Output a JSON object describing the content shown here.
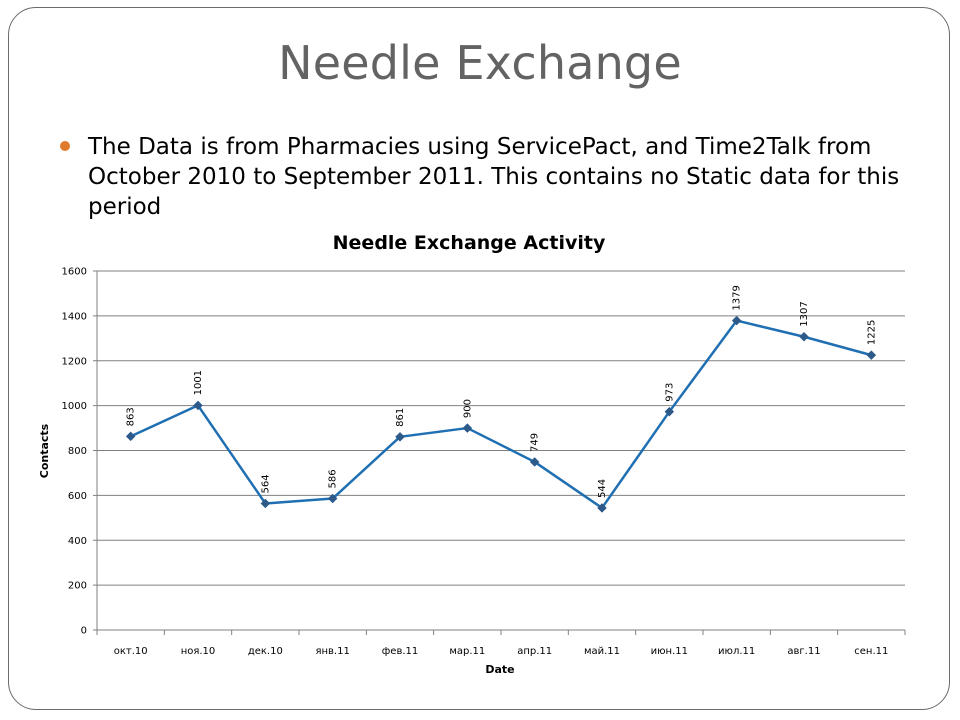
{
  "slide": {
    "title": "Needle Exchange",
    "bullet": "The Data is from Pharmacies using ServicePact, and Time2Talk from October 2010 to September 2011. This contains no Static data for this period"
  },
  "chart_data": {
    "type": "line",
    "title": "Needle Exchange Activity",
    "xlabel": "Date",
    "ylabel": "Contacts",
    "categories": [
      "окт.10",
      "ноя.10",
      "дек.10",
      "янв.11",
      "фев.11",
      "мар.11",
      "апр.11",
      "май.11",
      "июн.11",
      "июл.11",
      "авг.11",
      "сен.11"
    ],
    "values": [
      863,
      1001,
      564,
      586,
      861,
      900,
      749,
      544,
      973,
      1379,
      1307,
      1225
    ],
    "ylim": [
      0,
      1600
    ],
    "yticks": [
      0,
      200,
      400,
      600,
      800,
      1000,
      1200,
      1400,
      1600
    ],
    "grid": true,
    "legend": "none",
    "colors": {
      "line": "#1f6fb2",
      "marker": "#2e5a8a",
      "grid": "#808080"
    }
  }
}
